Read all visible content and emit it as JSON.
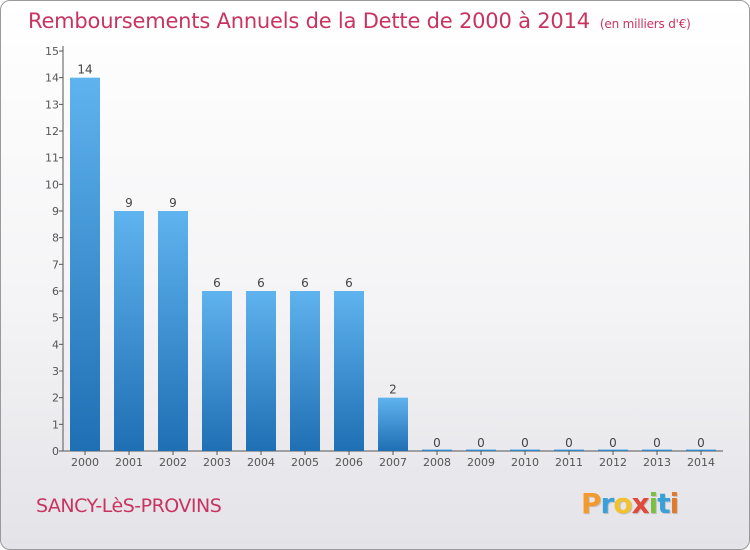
{
  "title": "Remboursements Annuels de la Dette de 2000 à 2014",
  "unit": "(en milliers d'€)",
  "commune": "SANCY-LèS-PROVINS",
  "logo": {
    "letters": [
      "P",
      "r",
      "o",
      "x",
      "i",
      "t",
      "i"
    ],
    "colors": [
      "#f29a2e",
      "#3aa0d8",
      "#f2c12e",
      "#e04a3a",
      "#7cc043",
      "#3aa0d8",
      "#e07a2e"
    ]
  },
  "colors": {
    "bar_top": "#5fb3ee",
    "bar_bottom": "#1f6fb4",
    "title": "#c8345f"
  },
  "chart_data": {
    "type": "bar",
    "categories": [
      "2000",
      "2001",
      "2002",
      "2003",
      "2004",
      "2005",
      "2006",
      "2007",
      "2008",
      "2009",
      "2010",
      "2011",
      "2012",
      "2013",
      "2014"
    ],
    "values": [
      14,
      9,
      9,
      6,
      6,
      6,
      6,
      2,
      0,
      0,
      0,
      0,
      0,
      0,
      0
    ],
    "ylim": [
      0,
      15
    ],
    "yticks": [
      "0",
      "1",
      "2",
      "3",
      "4",
      "5",
      "6",
      "7",
      "8",
      "9",
      "10",
      "11",
      "12",
      "13",
      "14",
      "15"
    ],
    "grid": false
  }
}
